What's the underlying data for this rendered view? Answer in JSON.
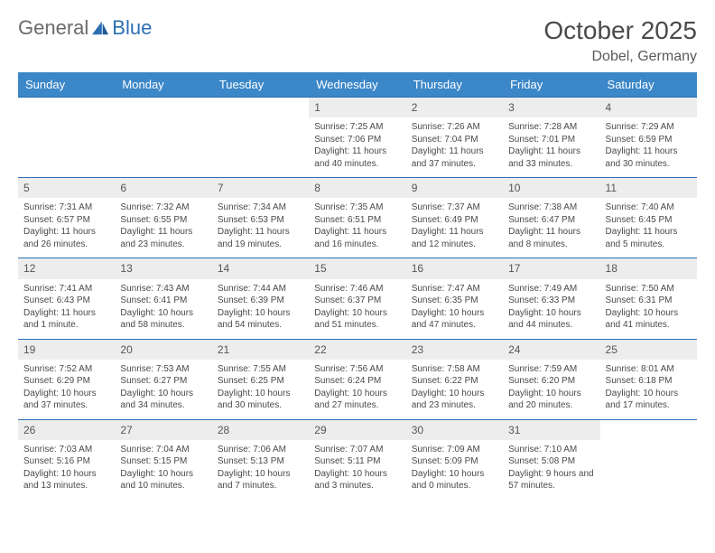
{
  "brand": {
    "part1": "General",
    "part2": "Blue"
  },
  "title": "October 2025",
  "location": "Dobel, Germany",
  "colors": {
    "header_bg": "#3b87c8",
    "header_text": "#ffffff",
    "rule": "#2c6fb5",
    "daynum_bg": "#ededed",
    "text": "#4a4a4a"
  },
  "day_names": [
    "Sunday",
    "Monday",
    "Tuesday",
    "Wednesday",
    "Thursday",
    "Friday",
    "Saturday"
  ],
  "weeks": [
    [
      null,
      null,
      null,
      {
        "n": "1",
        "sunrise": "7:25 AM",
        "sunset": "7:06 PM",
        "daylight": "11 hours and 40 minutes."
      },
      {
        "n": "2",
        "sunrise": "7:26 AM",
        "sunset": "7:04 PM",
        "daylight": "11 hours and 37 minutes."
      },
      {
        "n": "3",
        "sunrise": "7:28 AM",
        "sunset": "7:01 PM",
        "daylight": "11 hours and 33 minutes."
      },
      {
        "n": "4",
        "sunrise": "7:29 AM",
        "sunset": "6:59 PM",
        "daylight": "11 hours and 30 minutes."
      }
    ],
    [
      {
        "n": "5",
        "sunrise": "7:31 AM",
        "sunset": "6:57 PM",
        "daylight": "11 hours and 26 minutes."
      },
      {
        "n": "6",
        "sunrise": "7:32 AM",
        "sunset": "6:55 PM",
        "daylight": "11 hours and 23 minutes."
      },
      {
        "n": "7",
        "sunrise": "7:34 AM",
        "sunset": "6:53 PM",
        "daylight": "11 hours and 19 minutes."
      },
      {
        "n": "8",
        "sunrise": "7:35 AM",
        "sunset": "6:51 PM",
        "daylight": "11 hours and 16 minutes."
      },
      {
        "n": "9",
        "sunrise": "7:37 AM",
        "sunset": "6:49 PM",
        "daylight": "11 hours and 12 minutes."
      },
      {
        "n": "10",
        "sunrise": "7:38 AM",
        "sunset": "6:47 PM",
        "daylight": "11 hours and 8 minutes."
      },
      {
        "n": "11",
        "sunrise": "7:40 AM",
        "sunset": "6:45 PM",
        "daylight": "11 hours and 5 minutes."
      }
    ],
    [
      {
        "n": "12",
        "sunrise": "7:41 AM",
        "sunset": "6:43 PM",
        "daylight": "11 hours and 1 minute."
      },
      {
        "n": "13",
        "sunrise": "7:43 AM",
        "sunset": "6:41 PM",
        "daylight": "10 hours and 58 minutes."
      },
      {
        "n": "14",
        "sunrise": "7:44 AM",
        "sunset": "6:39 PM",
        "daylight": "10 hours and 54 minutes."
      },
      {
        "n": "15",
        "sunrise": "7:46 AM",
        "sunset": "6:37 PM",
        "daylight": "10 hours and 51 minutes."
      },
      {
        "n": "16",
        "sunrise": "7:47 AM",
        "sunset": "6:35 PM",
        "daylight": "10 hours and 47 minutes."
      },
      {
        "n": "17",
        "sunrise": "7:49 AM",
        "sunset": "6:33 PM",
        "daylight": "10 hours and 44 minutes."
      },
      {
        "n": "18",
        "sunrise": "7:50 AM",
        "sunset": "6:31 PM",
        "daylight": "10 hours and 41 minutes."
      }
    ],
    [
      {
        "n": "19",
        "sunrise": "7:52 AM",
        "sunset": "6:29 PM",
        "daylight": "10 hours and 37 minutes."
      },
      {
        "n": "20",
        "sunrise": "7:53 AM",
        "sunset": "6:27 PM",
        "daylight": "10 hours and 34 minutes."
      },
      {
        "n": "21",
        "sunrise": "7:55 AM",
        "sunset": "6:25 PM",
        "daylight": "10 hours and 30 minutes."
      },
      {
        "n": "22",
        "sunrise": "7:56 AM",
        "sunset": "6:24 PM",
        "daylight": "10 hours and 27 minutes."
      },
      {
        "n": "23",
        "sunrise": "7:58 AM",
        "sunset": "6:22 PM",
        "daylight": "10 hours and 23 minutes."
      },
      {
        "n": "24",
        "sunrise": "7:59 AM",
        "sunset": "6:20 PM",
        "daylight": "10 hours and 20 minutes."
      },
      {
        "n": "25",
        "sunrise": "8:01 AM",
        "sunset": "6:18 PM",
        "daylight": "10 hours and 17 minutes."
      }
    ],
    [
      {
        "n": "26",
        "sunrise": "7:03 AM",
        "sunset": "5:16 PM",
        "daylight": "10 hours and 13 minutes."
      },
      {
        "n": "27",
        "sunrise": "7:04 AM",
        "sunset": "5:15 PM",
        "daylight": "10 hours and 10 minutes."
      },
      {
        "n": "28",
        "sunrise": "7:06 AM",
        "sunset": "5:13 PM",
        "daylight": "10 hours and 7 minutes."
      },
      {
        "n": "29",
        "sunrise": "7:07 AM",
        "sunset": "5:11 PM",
        "daylight": "10 hours and 3 minutes."
      },
      {
        "n": "30",
        "sunrise": "7:09 AM",
        "sunset": "5:09 PM",
        "daylight": "10 hours and 0 minutes."
      },
      {
        "n": "31",
        "sunrise": "7:10 AM",
        "sunset": "5:08 PM",
        "daylight": "9 hours and 57 minutes."
      },
      null
    ]
  ],
  "labels": {
    "sunrise": "Sunrise: ",
    "sunset": "Sunset: ",
    "daylight": "Daylight: "
  }
}
